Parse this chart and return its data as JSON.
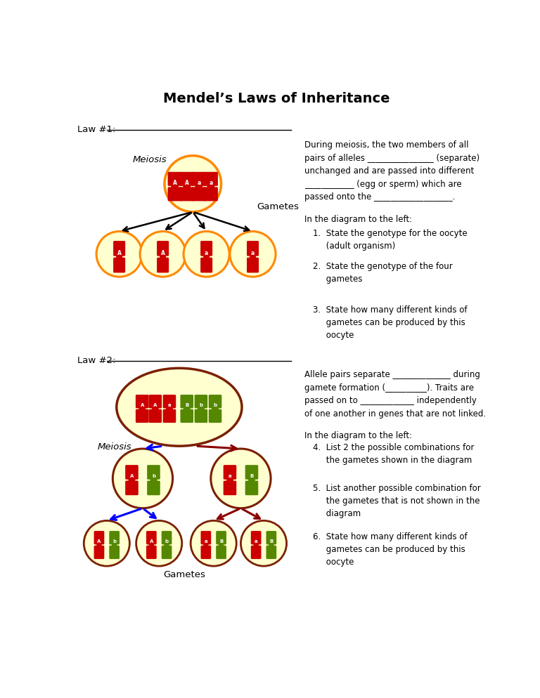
{
  "title": "Mendel’s Laws of Inheritance",
  "bg_color": "#ffffff",
  "chr_red": "#cc0000",
  "chr_green": "#558800",
  "cell_fill_light": "#ffffd0",
  "cell_edge_orange": "#ff8800",
  "cell_edge_dark": "#7a2000",
  "law1_label": "Law #1: ",
  "law2_label": "Law #2: ",
  "meiosis_label": "Meiosis",
  "gametes_label": "Gametes",
  "right_text_1": "During meiosis, the two members of all\npairs of alleles ________________ (separate)\nunchanged and are passed into different\n____________ (egg or sperm) which are\npassed onto the ___________________.",
  "right_text_2": "In the diagram to the left:",
  "q1": "1.  State the genotype for the oocyte\n     (adult organism)",
  "q2": "2.  State the genotype of the four\n     gametes",
  "q3": "3.  State how many different kinds of\n     gametes can be produced by this\n     oocyte",
  "right_text_law2": "Allele pairs separate ______________ during\ngamete formation (__________). Traits are\npassed on to _____________ independently\nof one another in genes that are not linked.",
  "right_text_law2b": "In the diagram to the left:",
  "q4": "4.  List 2 the possible combinations for\n     the gametes shown in the diagram",
  "q5": "5.  List another possible combination for\n     the gametes that is not shown in the\n     diagram",
  "q6": "6.  State how many different kinds of\n     gametes can be produced by this\n     oocyte"
}
